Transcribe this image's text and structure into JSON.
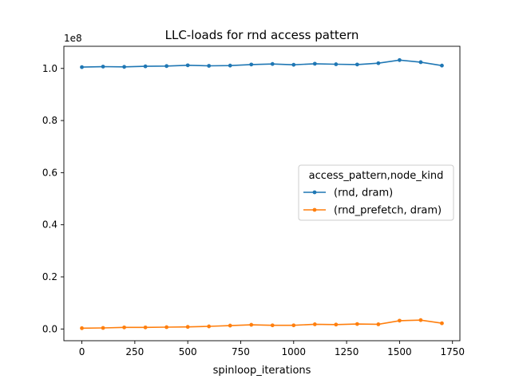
{
  "chart_data": {
    "type": "line",
    "title": "LLC-loads for rnd access pattern",
    "xlabel": "spinloop_iterations",
    "ylabel": "",
    "y_scale_label": "1e8",
    "xlim": [
      -85,
      1785
    ],
    "ylim": [
      -0.045,
      1.085
    ],
    "x_ticks": [
      0,
      250,
      500,
      750,
      1000,
      1250,
      1500,
      1750
    ],
    "x_tick_labels": [
      "0",
      "250",
      "500",
      "750",
      "1000",
      "1250",
      "1500",
      "1750"
    ],
    "y_ticks": [
      0.0,
      0.2,
      0.4,
      0.6,
      0.8,
      1.0
    ],
    "y_tick_labels": [
      "0.0",
      "0.2",
      "0.4",
      "0.6",
      "0.8",
      "1.0"
    ],
    "grid": false,
    "legend": {
      "title": "access_pattern,node_kind",
      "placement": "center-right"
    },
    "x": [
      0,
      100,
      200,
      300,
      400,
      500,
      600,
      700,
      800,
      900,
      1000,
      1100,
      1200,
      1300,
      1400,
      1500,
      1600,
      1700
    ],
    "series": [
      {
        "name": "(rnd, dram)",
        "color": "#1f77b4",
        "values": [
          1.005,
          1.007,
          1.006,
          1.008,
          1.009,
          1.012,
          1.01,
          1.011,
          1.015,
          1.017,
          1.014,
          1.018,
          1.016,
          1.015,
          1.02,
          1.032,
          1.024,
          1.011
        ]
      },
      {
        "name": "(rnd_prefetch, dram)",
        "color": "#ff7f0e",
        "values": [
          0.003,
          0.004,
          0.006,
          0.006,
          0.007,
          0.008,
          0.01,
          0.013,
          0.016,
          0.014,
          0.014,
          0.018,
          0.017,
          0.019,
          0.018,
          0.032,
          0.034,
          0.022
        ]
      }
    ]
  }
}
